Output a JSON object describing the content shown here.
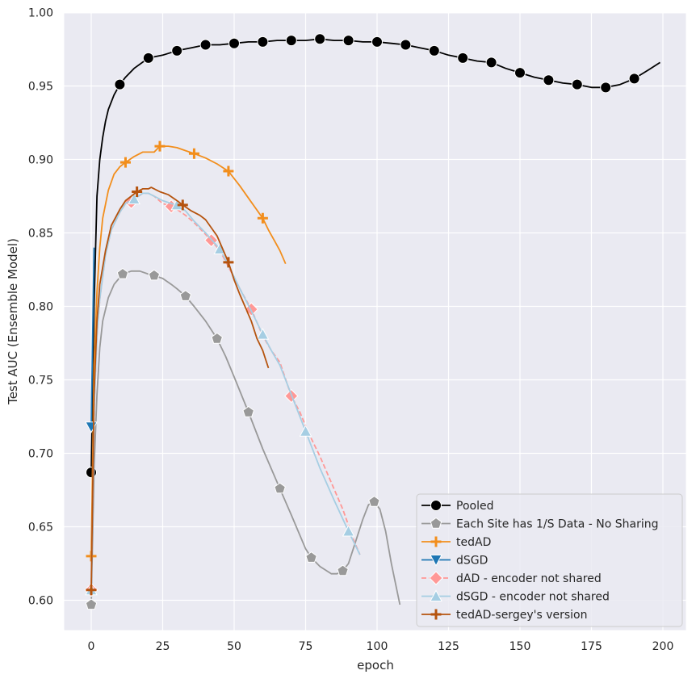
{
  "chart_data": {
    "type": "line",
    "title": "",
    "xlabel": "epoch",
    "ylabel": "Test AUC (Ensemble Model)",
    "xlim": [
      -9,
      208
    ],
    "ylim": [
      0.579,
      1.0
    ],
    "xticks": [
      0,
      25,
      50,
      75,
      100,
      125,
      150,
      175,
      200
    ],
    "xtick_labels": [
      "0",
      "25",
      "50",
      "75",
      "100",
      "125",
      "150",
      "175",
      "200"
    ],
    "yticks": [
      0.6,
      0.65,
      0.7,
      0.75,
      0.8,
      0.85,
      0.9,
      0.95,
      1.0
    ],
    "ytick_labels": [
      "0.60",
      "0.65",
      "0.70",
      "0.75",
      "0.80",
      "0.85",
      "0.90",
      "0.95",
      "1.00"
    ],
    "grid": true,
    "legend_position": "lower-right",
    "background": "#eaeaf2",
    "series": [
      {
        "name": "Pooled",
        "color": "#000000",
        "marker": "circle",
        "dashed": false,
        "x": [
          0,
          1,
          2,
          3,
          4,
          5,
          6,
          8,
          10,
          12,
          15,
          20,
          25,
          30,
          35,
          40,
          45,
          50,
          55,
          60,
          65,
          70,
          75,
          80,
          85,
          90,
          95,
          100,
          105,
          110,
          115,
          120,
          125,
          130,
          135,
          140,
          145,
          150,
          155,
          160,
          165,
          170,
          175,
          180,
          185,
          190,
          195,
          199
        ],
        "y": [
          0.687,
          0.8,
          0.875,
          0.9,
          0.915,
          0.926,
          0.934,
          0.944,
          0.951,
          0.956,
          0.962,
          0.969,
          0.971,
          0.974,
          0.976,
          0.978,
          0.978,
          0.979,
          0.98,
          0.98,
          0.981,
          0.981,
          0.981,
          0.982,
          0.981,
          0.981,
          0.98,
          0.98,
          0.979,
          0.978,
          0.976,
          0.974,
          0.971,
          0.969,
          0.967,
          0.966,
          0.962,
          0.959,
          0.956,
          0.954,
          0.952,
          0.951,
          0.949,
          0.949,
          0.951,
          0.955,
          0.961,
          0.966
        ],
        "marker_every": [
          0,
          10,
          20,
          30,
          40,
          50,
          60,
          70,
          80,
          90,
          100,
          110,
          120,
          130,
          140,
          150,
          160,
          170,
          180,
          190
        ]
      },
      {
        "name": "Each Site has 1/S Data - No Sharing",
        "color": "#999999",
        "marker": "pentagon",
        "dashed": false,
        "x": [
          0,
          1,
          2,
          3,
          4,
          6,
          8,
          11,
          14,
          17,
          20,
          22,
          25,
          28,
          30,
          33,
          36,
          40,
          44,
          47,
          50,
          55,
          60,
          66,
          70,
          75,
          77,
          80,
          84,
          86,
          88,
          90,
          92,
          95,
          97,
          99,
          101,
          103,
          105,
          108
        ],
        "y": [
          0.597,
          0.69,
          0.74,
          0.772,
          0.79,
          0.806,
          0.815,
          0.822,
          0.824,
          0.824,
          0.822,
          0.821,
          0.819,
          0.815,
          0.812,
          0.807,
          0.8,
          0.79,
          0.778,
          0.766,
          0.752,
          0.728,
          0.703,
          0.676,
          0.658,
          0.635,
          0.629,
          0.623,
          0.618,
          0.618,
          0.62,
          0.625,
          0.637,
          0.655,
          0.665,
          0.667,
          0.662,
          0.647,
          0.625,
          0.597
        ],
        "marker_every": [
          0,
          11,
          22,
          33,
          44,
          55,
          66,
          77,
          88,
          99
        ]
      },
      {
        "name": "tedAD",
        "color": "#f28e1c",
        "marker": "plus",
        "dashed": false,
        "x": [
          0,
          1,
          2,
          3,
          4,
          6,
          8,
          10,
          12,
          15,
          18,
          20,
          22,
          24,
          27,
          30,
          33,
          36,
          40,
          44,
          48,
          52,
          56,
          60,
          62,
          64,
          66,
          68
        ],
        "y": [
          0.63,
          0.76,
          0.81,
          0.84,
          0.86,
          0.879,
          0.89,
          0.895,
          0.898,
          0.902,
          0.905,
          0.905,
          0.905,
          0.909,
          0.909,
          0.908,
          0.906,
          0.904,
          0.901,
          0.897,
          0.892,
          0.882,
          0.871,
          0.86,
          0.852,
          0.845,
          0.838,
          0.829
        ],
        "marker_every": [
          0,
          12,
          24,
          36,
          48,
          60
        ]
      },
      {
        "name": "dSGD",
        "color": "#1f77b4",
        "marker": "triangle-down",
        "dashed": false,
        "x": [
          0,
          1
        ],
        "y": [
          0.718,
          0.84
        ],
        "marker_every": [
          0
        ]
      },
      {
        "name": "dAD - encoder not shared",
        "color": "#ff9896",
        "marker": "diamond",
        "dashed": true,
        "x": [
          0,
          1,
          2,
          3,
          5,
          7,
          10,
          12,
          14,
          16,
          18,
          20,
          22,
          25,
          28,
          30,
          33,
          36,
          40,
          42,
          45,
          48,
          52,
          56,
          60,
          63,
          66,
          70,
          73,
          76,
          80,
          84,
          88,
          92,
          94
        ],
        "y": [
          0.607,
          0.73,
          0.78,
          0.805,
          0.835,
          0.852,
          0.864,
          0.87,
          0.871,
          0.874,
          0.877,
          0.877,
          0.875,
          0.87,
          0.868,
          0.866,
          0.862,
          0.857,
          0.849,
          0.845,
          0.838,
          0.827,
          0.812,
          0.798,
          0.78,
          0.77,
          0.762,
          0.739,
          0.728,
          0.714,
          0.698,
          0.68,
          0.662,
          0.64,
          0.631
        ],
        "marker_every": [
          0,
          14,
          28,
          42,
          56,
          70
        ]
      },
      {
        "name": "dSGD - encoder not shared",
        "color": "#a6cee3",
        "marker": "triangle-up",
        "dashed": false,
        "x": [
          0,
          1,
          2,
          3,
          5,
          7,
          10,
          12,
          15,
          18,
          20,
          22,
          25,
          28,
          30,
          33,
          36,
          40,
          45,
          48,
          52,
          56,
          60,
          63,
          66,
          70,
          75,
          80,
          85,
          90,
          94
        ],
        "y": [
          0.607,
          0.73,
          0.78,
          0.805,
          0.835,
          0.852,
          0.864,
          0.87,
          0.873,
          0.877,
          0.877,
          0.875,
          0.872,
          0.87,
          0.869,
          0.865,
          0.858,
          0.85,
          0.839,
          0.828,
          0.812,
          0.797,
          0.781,
          0.77,
          0.76,
          0.74,
          0.715,
          0.69,
          0.668,
          0.647,
          0.631
        ],
        "marker_every": [
          0,
          15,
          30,
          45,
          60,
          75,
          90
        ]
      },
      {
        "name": "tedAD-sergey's version",
        "color": "#b5530e",
        "marker": "plus",
        "dashed": false,
        "x": [
          0,
          1,
          2,
          3,
          5,
          7,
          10,
          12,
          14,
          16,
          18,
          20,
          21,
          24,
          27,
          30,
          32,
          35,
          38,
          40,
          44,
          48,
          50,
          52,
          56,
          58,
          60,
          61,
          62
        ],
        "y": [
          0.607,
          0.74,
          0.79,
          0.815,
          0.838,
          0.855,
          0.866,
          0.872,
          0.875,
          0.878,
          0.88,
          0.88,
          0.881,
          0.878,
          0.876,
          0.872,
          0.869,
          0.865,
          0.862,
          0.859,
          0.848,
          0.83,
          0.818,
          0.808,
          0.79,
          0.778,
          0.77,
          0.764,
          0.758
        ],
        "marker_every": [
          0,
          16,
          32,
          48
        ]
      }
    ]
  }
}
